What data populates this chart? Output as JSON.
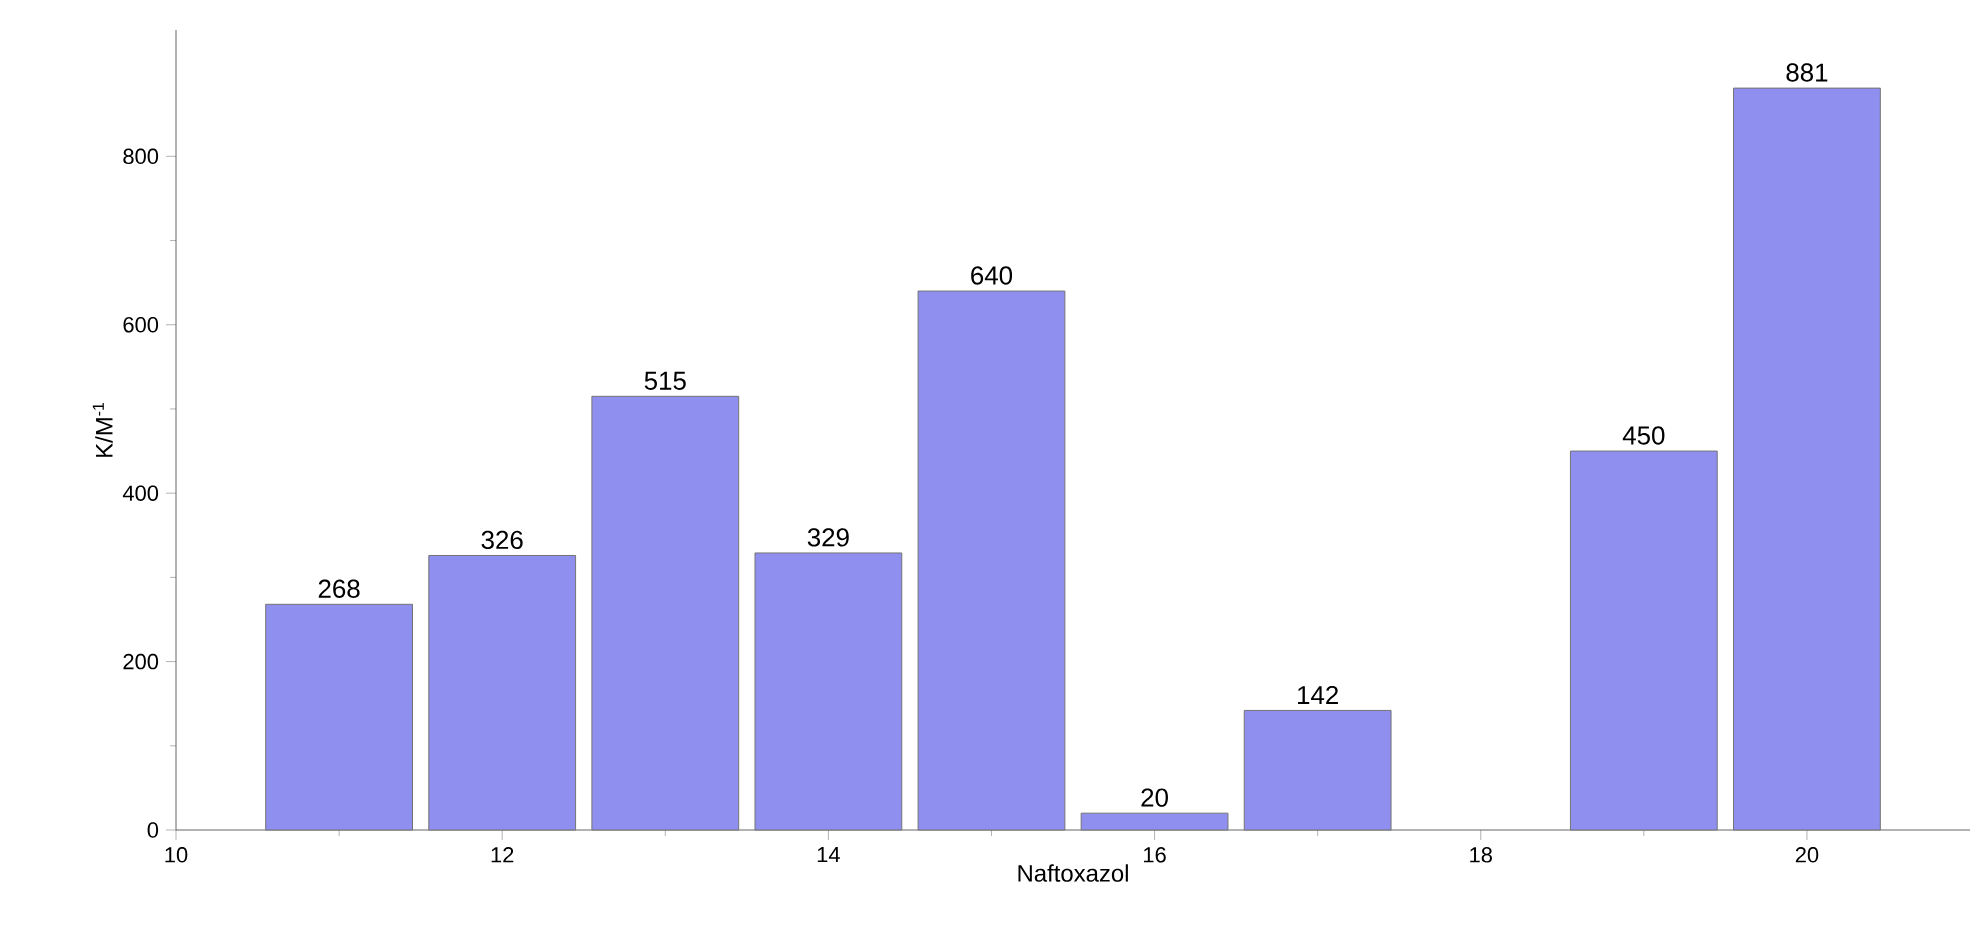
{
  "chart_data": {
    "type": "bar",
    "xlabel": "Naftoxazol",
    "ylabel": "K/M$^{-1}$",
    "x": [
      11,
      12,
      13,
      14,
      15,
      16,
      17,
      19,
      20
    ],
    "values": [
      268,
      326,
      515,
      329,
      640,
      20,
      142,
      450,
      881
    ],
    "color": "#8f8ff0",
    "data_labels": true,
    "xlim": [
      10,
      21
    ],
    "ylim": [
      0,
      950
    ],
    "xticks": [
      10,
      12,
      14,
      16,
      18,
      20
    ],
    "yticks": [
      0,
      200,
      400,
      600,
      800
    ],
    "grid": false
  }
}
